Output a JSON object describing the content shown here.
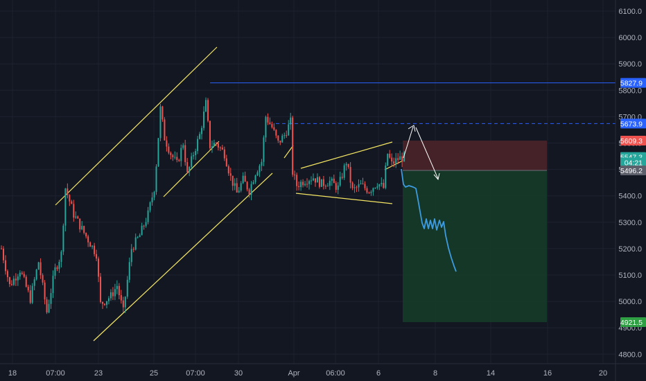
{
  "chart_data": {
    "type": "candlestick",
    "instrument_hint": "index, 1h candles",
    "background": "#131722",
    "colors": {
      "up": "#26a69a",
      "down": "#ef5350",
      "trendline": "#f5e663",
      "level_line": "#2962ff",
      "projection": "#3d9be0",
      "arrow": "#ffffff",
      "stop_zone": "#4a2429",
      "target_zone": "#163b28",
      "grid": "#1e2230",
      "axis_text": "#b2b5be"
    },
    "y_axis": {
      "range": [
        4780,
        6120
      ],
      "ticks": [
        "6100.0",
        "6000.0",
        "5900.0",
        "5800.0",
        "5700.0",
        "5600.0",
        "5500.0",
        "5400.0",
        "5300.0",
        "5200.0",
        "5100.0",
        "5000.0",
        "4900.0",
        "4800.0"
      ]
    },
    "x_axis": {
      "ticks": [
        "18",
        "07:00",
        "23",
        "25",
        "07:00",
        "30",
        "Apr",
        "06:00",
        "6",
        "8",
        "14",
        "16",
        "20"
      ]
    },
    "price_anchors": [
      [
        0,
        5200
      ],
      [
        4,
        5060
      ],
      [
        9,
        5120
      ],
      [
        14,
        5010
      ],
      [
        18,
        5150
      ],
      [
        22,
        4960
      ],
      [
        26,
        5120
      ],
      [
        29,
        5180
      ],
      [
        31,
        5430
      ],
      [
        35,
        5330
      ],
      [
        40,
        5260
      ],
      [
        46,
        5180
      ],
      [
        48,
        4990
      ],
      [
        53,
        5020
      ],
      [
        56,
        5060
      ],
      [
        59,
        4960
      ],
      [
        63,
        5200
      ],
      [
        67,
        5250
      ],
      [
        71,
        5330
      ],
      [
        74,
        5430
      ],
      [
        75,
        5520
      ],
      [
        77,
        5730
      ],
      [
        79,
        5620
      ],
      [
        82,
        5560
      ],
      [
        85,
        5520
      ],
      [
        88,
        5600
      ],
      [
        90,
        5480
      ],
      [
        93,
        5560
      ],
      [
        96,
        5630
      ],
      [
        99,
        5750
      ],
      [
        101,
        5590
      ],
      [
        104,
        5600
      ],
      [
        108,
        5560
      ],
      [
        111,
        5470
      ],
      [
        114,
        5410
      ],
      [
        117,
        5460
      ],
      [
        120,
        5420
      ],
      [
        123,
        5490
      ],
      [
        126,
        5530
      ],
      [
        128,
        5700
      ],
      [
        131,
        5660
      ],
      [
        134,
        5600
      ],
      [
        137,
        5630
      ],
      [
        140,
        5680
      ],
      [
        141,
        5490
      ],
      [
        143,
        5440
      ],
      [
        147,
        5460
      ],
      [
        151,
        5470
      ],
      [
        155,
        5445
      ],
      [
        159,
        5455
      ],
      [
        163,
        5430
      ],
      [
        167,
        5530
      ],
      [
        170,
        5420
      ],
      [
        174,
        5440
      ],
      [
        178,
        5420
      ],
      [
        182,
        5450
      ],
      [
        185,
        5430
      ],
      [
        186,
        5500
      ],
      [
        187,
        5560
      ],
      [
        189,
        5520
      ],
      [
        192,
        5540
      ],
      [
        195,
        5547
      ]
    ],
    "price_tags": [
      {
        "label": "5827.9",
        "value": 5827.9,
        "color": "#2962ff"
      },
      {
        "label": "5673.9",
        "value": 5673.9,
        "color": "#2962ff"
      },
      {
        "label": "5609.3",
        "value": 5609.3,
        "color": "#ef5350"
      },
      {
        "label": "5547.3",
        "value": 5547.3,
        "color": "#26a69a"
      },
      {
        "label": "04:21",
        "value": 5527,
        "color": "#26a69a"
      },
      {
        "label": "5496.2",
        "value": 5496.2,
        "color": "#5d606b"
      },
      {
        "label": "4921.5",
        "value": 4921.5,
        "color": "#2ea043"
      }
    ],
    "levels": [
      {
        "value": 5827.9,
        "style": "solid"
      },
      {
        "value": 5673.9,
        "style": "dashed"
      }
    ],
    "position": {
      "entry": 5496.2,
      "stop": 5609.3,
      "target": 4921.5
    }
  }
}
